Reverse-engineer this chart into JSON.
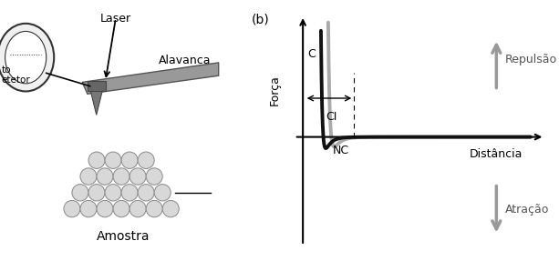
{
  "title_b": "(b)",
  "xlabel": "Distância",
  "ylabel": "Força",
  "label_C": "C",
  "label_CI": "CI",
  "label_NC": "NC",
  "label_repulsao": "Repulsão",
  "label_atracao": "Atração",
  "label_laser": "Laser",
  "label_alavanca": "Alavanca",
  "label_amostra": "Amostra",
  "bg_color": "#ffffff",
  "curve_color_black": "#111111",
  "curve_color_gray": "#aaaaaa",
  "arrow_gray": "#999999",
  "text_color": "#000000",
  "atom_face": "#d8d8d8",
  "atom_edge": "#888888",
  "lever_face": "#999999",
  "lever_edge": "#555555",
  "detector_face": "#f0f0f0",
  "detector_edge": "#333333"
}
